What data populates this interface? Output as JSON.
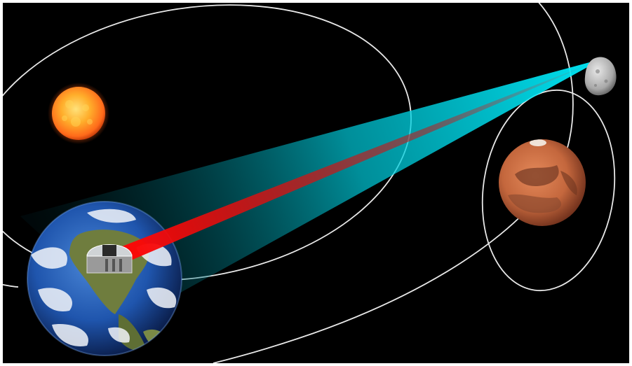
{
  "scene": {
    "objects": [
      "sun",
      "earth",
      "observatory",
      "moon",
      "mars",
      "earth-orbit",
      "mars-orbit",
      "moon-orbit"
    ],
    "colors": {
      "background": "#000000",
      "frame": "#ffffff",
      "orbit_lines": "#e8e8e8",
      "beam_cyan": "#00e5ff",
      "beam_red": "#ff0a0a",
      "sun_core": "#ffd23a",
      "sun_edge": "#e3420f",
      "earth_ocean": "#1d4fa8",
      "earth_land": "#6f7d3e",
      "earth_cloud": "#f2f5fa",
      "mars_surface": "#c4673d",
      "mars_dark": "#6e3d2b",
      "moon_surface": "#b8b8b8"
    }
  }
}
